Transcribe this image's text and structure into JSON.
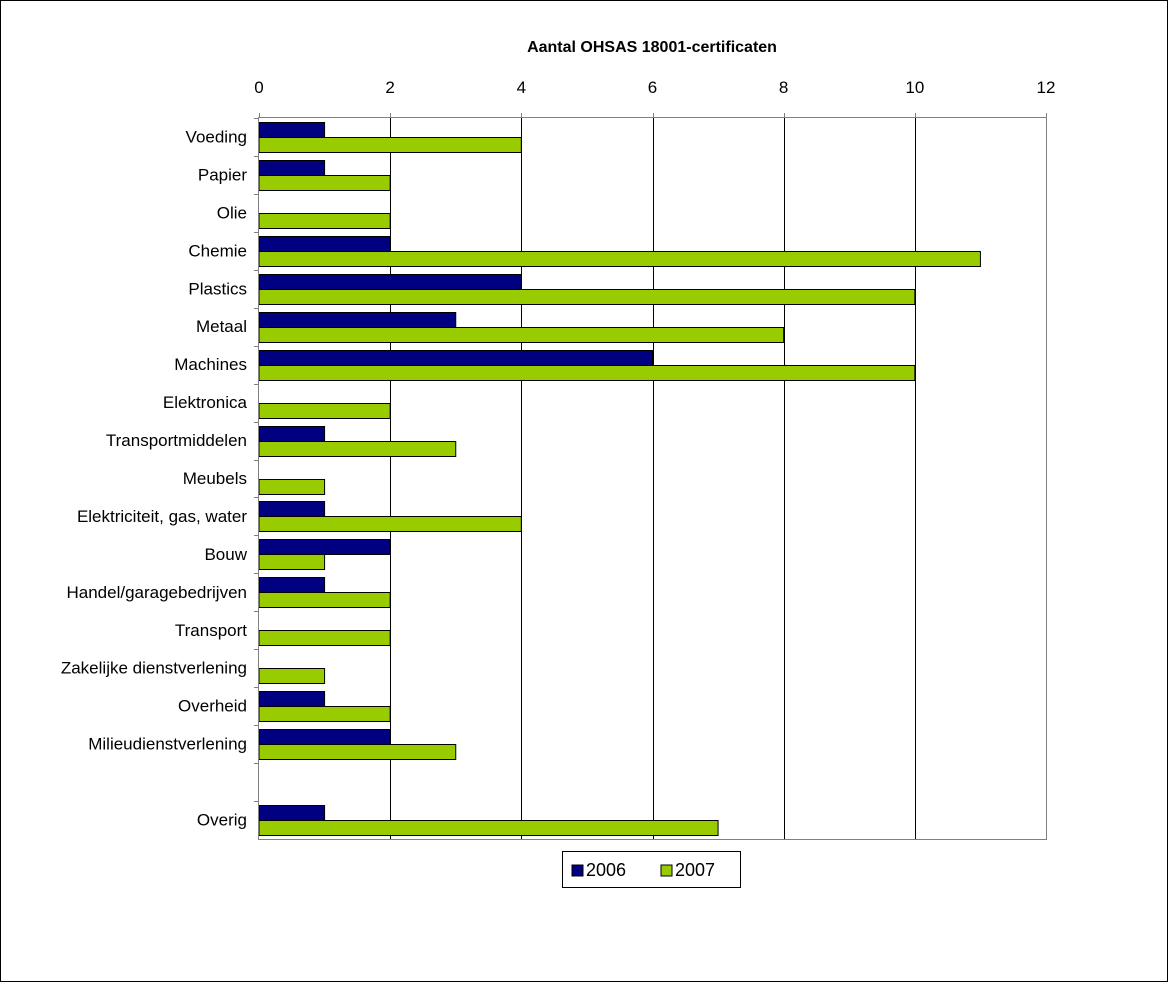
{
  "chart_data": {
    "type": "bar",
    "orientation": "horizontal",
    "title": "Aantal OHSAS 18001-certificaten",
    "xlabel": "",
    "ylabel": "",
    "xlim": [
      0,
      12
    ],
    "x_ticks": [
      0,
      2,
      4,
      6,
      8,
      10,
      12
    ],
    "grid": true,
    "legend_position": "bottom",
    "categories": [
      "Voeding",
      "Papier",
      "Olie",
      "Chemie",
      "Plastics",
      "Metaal",
      "Machines",
      "Elektronica",
      "Transportmiddelen",
      "Meubels",
      "Elektriciteit, gas, water",
      "Bouw",
      "Handel/garagebedrijven",
      "Transport",
      "Zakelijke dienstverlening",
      "Overheid",
      "Milieudienstverlening",
      "",
      "Overig"
    ],
    "series": [
      {
        "name": "2006",
        "color": "#000080",
        "values": [
          1,
          1,
          0,
          2,
          4,
          3,
          6,
          0,
          1,
          0,
          1,
          2,
          1,
          0,
          0,
          1,
          2,
          null,
          1
        ]
      },
      {
        "name": "2007",
        "color": "#99CC00",
        "values": [
          4,
          2,
          2,
          11,
          10,
          8,
          10,
          2,
          3,
          1,
          4,
          1,
          2,
          2,
          1,
          2,
          3,
          null,
          7
        ]
      }
    ]
  }
}
